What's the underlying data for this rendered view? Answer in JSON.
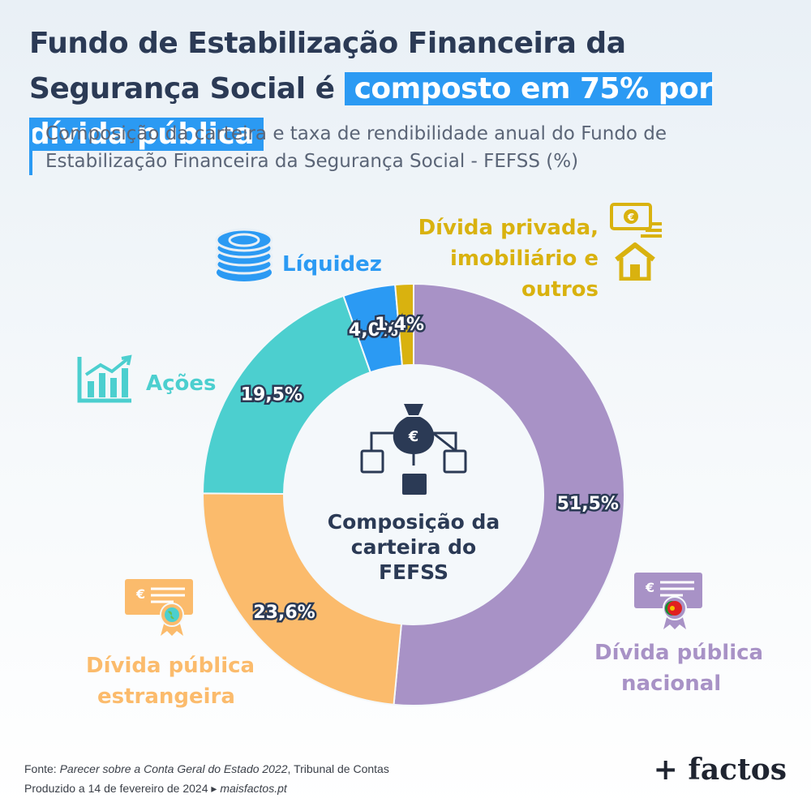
{
  "header": {
    "title_part1": "Fundo de Estabilização Financeira da Segurança Social é",
    "title_highlight": "composto em 75% por dívida pública",
    "subtitle": "Composição da carteira e taxa de rendibilidade anual do Fundo de Estabilização Financeira da Segurança Social - FEFSS (%)"
  },
  "chart_data": {
    "type": "pie",
    "title": "",
    "center_label": "Composição da carteira do FEFSS",
    "series": [
      {
        "name": "Dívida pública nacional",
        "value": 51.5,
        "label": "51,5%",
        "color": "#a892c6"
      },
      {
        "name": "Dívida pública estrangeira",
        "value": 23.6,
        "label": "23,6%",
        "color": "#fbbb6c"
      },
      {
        "name": "Ações",
        "value": 19.5,
        "label": "19,5%",
        "color": "#4ccfcf"
      },
      {
        "name": "Líquidez",
        "value": 4.0,
        "label": "4,0%",
        "color": "#2b9af3"
      },
      {
        "name": "Dívida privada, imobiliário e outros",
        "value": 1.4,
        "label": "1,4%",
        "color": "#d9b20f"
      }
    ]
  },
  "labels": {
    "nacional_line1": "Dívida pública",
    "nacional_line2": "nacional",
    "estrangeira_line1": "Dívida pública",
    "estrangeira_line2": "estrangeira",
    "acoes": "Ações",
    "liquidez": "Líquidez",
    "privada_line1": "Dívida privada,",
    "privada_line2": "imobiliário e outros"
  },
  "icons": {
    "bag": "money-bag-icon",
    "coins": "coins-icon",
    "chart": "bar-chart-icon",
    "banknote": "banknote-icon",
    "house": "house-icon",
    "cert_pt": "certificate-portugal-icon",
    "cert_world": "certificate-globe-icon"
  },
  "footer": {
    "source_prefix": "Fonte: ",
    "source_title": "Parecer sobre a Conta Geral do Estado 2022",
    "source_suffix": ", Tribunal de Contas",
    "produced_prefix": "Produzido a 14 de fevereiro de 2024 ▸ ",
    "produced_site": "maisfactos.pt",
    "brand": "+ factos"
  }
}
